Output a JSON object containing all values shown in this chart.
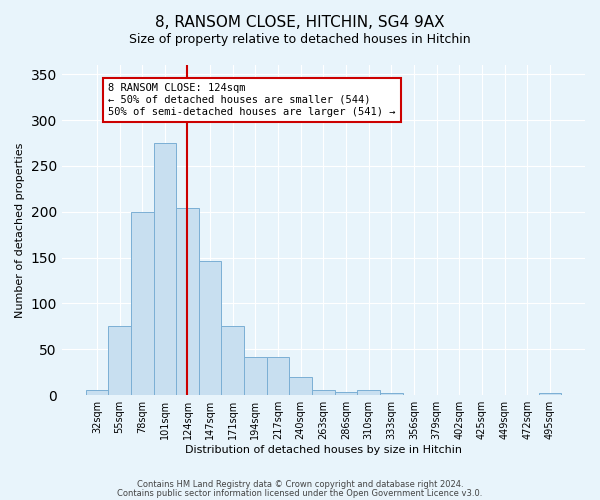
{
  "title": "8, RANSOM CLOSE, HITCHIN, SG4 9AX",
  "subtitle": "Size of property relative to detached houses in Hitchin",
  "xlabel": "Distribution of detached houses by size in Hitchin",
  "ylabel": "Number of detached properties",
  "bar_labels": [
    "32sqm",
    "55sqm",
    "78sqm",
    "101sqm",
    "124sqm",
    "147sqm",
    "171sqm",
    "194sqm",
    "217sqm",
    "240sqm",
    "263sqm",
    "286sqm",
    "310sqm",
    "333sqm",
    "356sqm",
    "379sqm",
    "402sqm",
    "425sqm",
    "449sqm",
    "472sqm",
    "495sqm"
  ],
  "bar_heights": [
    6,
    75,
    200,
    275,
    204,
    146,
    75,
    42,
    42,
    20,
    6,
    4,
    6,
    2,
    0,
    0,
    0,
    0,
    0,
    0,
    2
  ],
  "bar_color": "#c8dff0",
  "bar_edge_color": "#7bafd4",
  "vline_x": 4,
  "vline_color": "#cc0000",
  "annotation_title": "8 RANSOM CLOSE: 124sqm",
  "annotation_line1": "← 50% of detached houses are smaller (544)",
  "annotation_line2": "50% of semi-detached houses are larger (541) →",
  "annotation_box_color": "#ffffff",
  "annotation_box_edge": "#cc0000",
  "ylim": [
    0,
    360
  ],
  "yticks": [
    0,
    50,
    100,
    150,
    200,
    250,
    300,
    350
  ],
  "footer1": "Contains HM Land Registry data © Crown copyright and database right 2024.",
  "footer2": "Contains public sector information licensed under the Open Government Licence v3.0.",
  "background_color": "#e8f4fb",
  "plot_background": "#e8f4fb",
  "title_fontsize": 11,
  "subtitle_fontsize": 9,
  "axis_label_fontsize": 8,
  "tick_fontsize": 7,
  "footer_fontsize": 6
}
